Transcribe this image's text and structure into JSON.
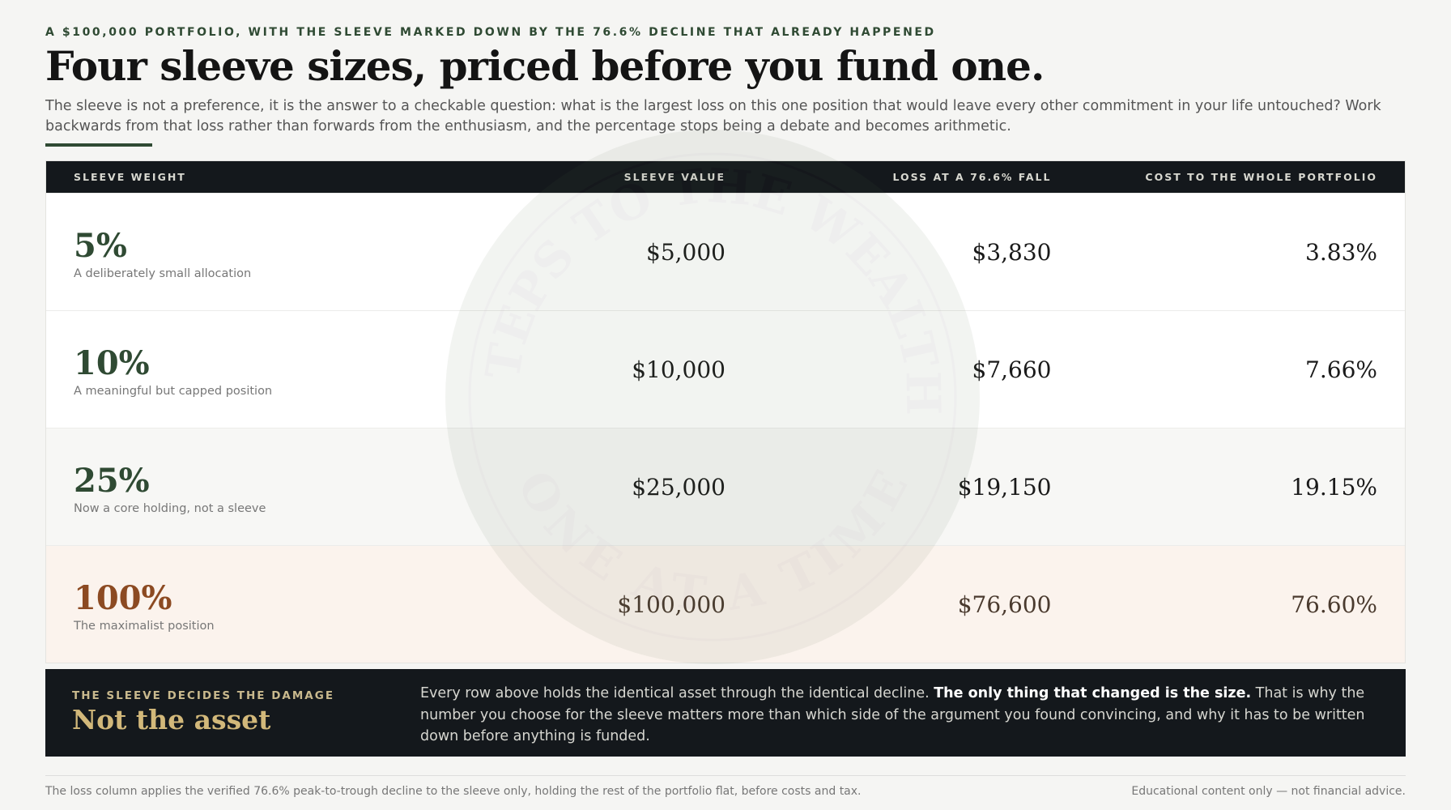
{
  "eyebrow": "A $100,000 PORTFOLIO, WITH THE SLEEVE MARKED DOWN BY THE 76.6% DECLINE THAT ALREADY HAPPENED",
  "title": "Four sleeve sizes, priced before you fund one.",
  "lede": "The sleeve is not a preference, it is the answer to a checkable question: what is the largest loss on this one position that would leave every other commitment in your life untouched? Work backwards from that loss rather than forwards from the enthusiasm, and the percentage stops being a debate and becomes arithmetic.",
  "table": {
    "headers": [
      "SLEEVE WEIGHT",
      "SLEEVE VALUE",
      "LOSS AT A 76.6% FALL",
      "COST TO THE WHOLE PORTFOLIO"
    ],
    "rows": [
      {
        "weight": "5%",
        "note": "A deliberately small allocation",
        "value": "$5,000",
        "loss": "$3,830",
        "cost": "3.83%"
      },
      {
        "weight": "10%",
        "note": "A meaningful but capped position",
        "value": "$10,000",
        "loss": "$7,660",
        "cost": "7.66%"
      },
      {
        "weight": "25%",
        "note": "Now a core holding, not a sleeve",
        "value": "$25,000",
        "loss": "$19,150",
        "cost": "19.15%"
      },
      {
        "weight": "100%",
        "note": "The maximalist position",
        "value": "$100,000",
        "loss": "$76,600",
        "cost": "76.60%"
      }
    ]
  },
  "watermark": {
    "top": "STEPS TO THE WEALTH",
    "bottom": "ONE AT A TIME"
  },
  "callout": {
    "kicker": "THE SLEEVE DECIDES THE DAMAGE",
    "title": "Not the asset",
    "body": [
      "Every row above holds the identical asset through the identical decline. ",
      "The only thing that changed is the size.",
      " That is why the number you choose for the sleeve matters more than which side of the argument you found convincing, and why it has to be written down before anything is funded."
    ]
  },
  "footer": {
    "note": "The loss column applies the verified 76.6% peak-to-trough decline to the sleeve only, holding the rest of the portfolio flat, before costs and tax.",
    "disclaimer": "Educational content only — not financial advice."
  }
}
